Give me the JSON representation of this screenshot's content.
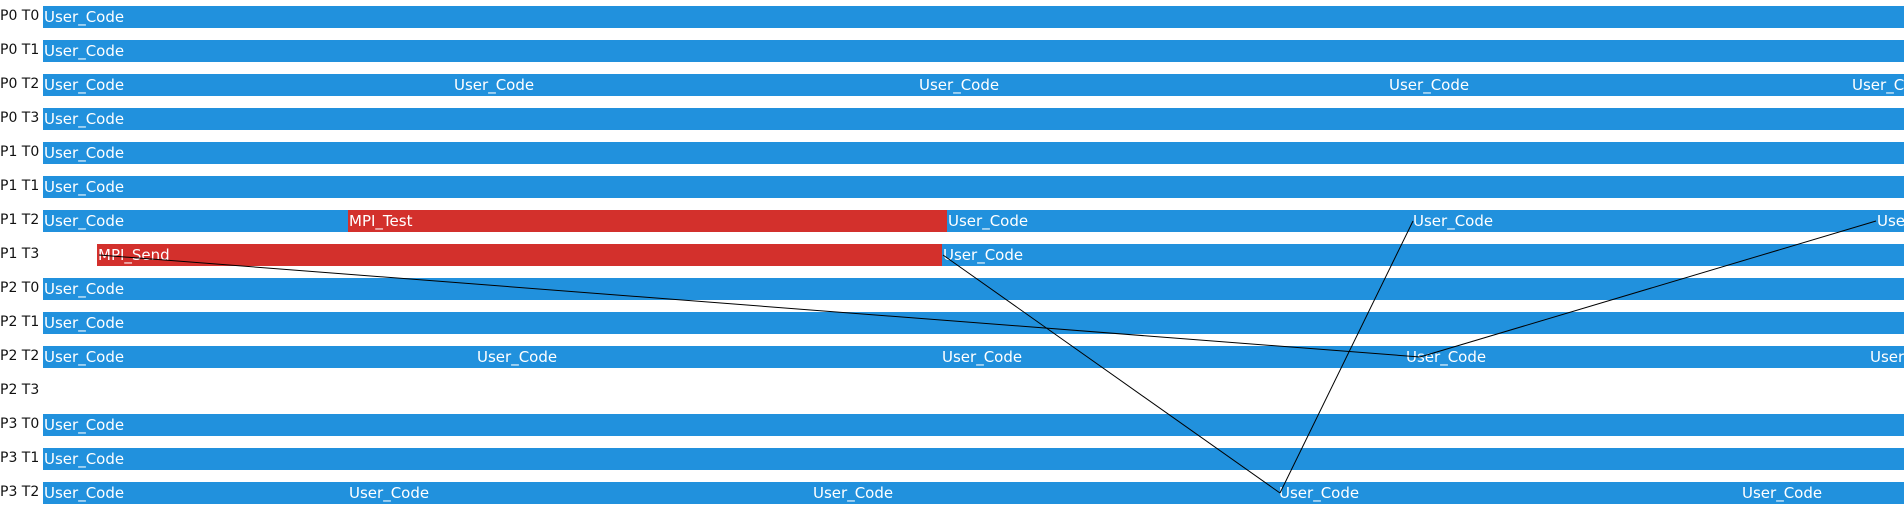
{
  "rows": [
    {
      "label": "P0 T0",
      "segments": [
        {
          "kind": "user",
          "label": "User_Code"
        }
      ]
    },
    {
      "label": "P0 T1",
      "segments": [
        {
          "kind": "user",
          "label": "User_Code"
        }
      ]
    },
    {
      "label": "P0 T2",
      "segments": [
        {
          "kind": "user",
          "label": "User_Code"
        },
        {
          "kind": "user",
          "label": "User_Code"
        },
        {
          "kind": "user",
          "label": "User_Code"
        },
        {
          "kind": "user",
          "label": "User_Code"
        },
        {
          "kind": "user",
          "label": "User_Code"
        }
      ]
    },
    {
      "label": "P0 T3",
      "segments": [
        {
          "kind": "user",
          "label": "User_Code"
        }
      ]
    },
    {
      "label": "P1 T0",
      "segments": [
        {
          "kind": "user",
          "label": "User_Code"
        }
      ]
    },
    {
      "label": "P1 T1",
      "segments": [
        {
          "kind": "user",
          "label": "User_Code"
        }
      ]
    },
    {
      "label": "P1 T2",
      "segments": [
        {
          "kind": "user",
          "label": "User_Code"
        },
        {
          "kind": "mpi",
          "label": "MPI_Test"
        },
        {
          "kind": "user",
          "label": "User_Code"
        },
        {
          "kind": "user",
          "label": "User_Code"
        },
        {
          "kind": "user",
          "label": "User_Code"
        }
      ]
    },
    {
      "label": "P1 T3",
      "segments": [
        {
          "kind": "mpi",
          "label": "MPI_Send"
        },
        {
          "kind": "user",
          "label": "User_Code"
        }
      ]
    },
    {
      "label": "P2 T0",
      "segments": [
        {
          "kind": "user",
          "label": "User_Code"
        }
      ]
    },
    {
      "label": "P2 T1",
      "segments": [
        {
          "kind": "user",
          "label": "User_Code"
        }
      ]
    },
    {
      "label": "P2 T2",
      "segments": [
        {
          "kind": "user",
          "label": "User_Code"
        },
        {
          "kind": "user",
          "label": "User_Code"
        },
        {
          "kind": "user",
          "label": "User_Code"
        },
        {
          "kind": "user",
          "label": "User_Code"
        },
        {
          "kind": "user",
          "label": "User_Code"
        }
      ]
    },
    {
      "label": "P2 T3",
      "segments": []
    },
    {
      "label": "P3 T0",
      "segments": [
        {
          "kind": "user",
          "label": "User_Code"
        }
      ]
    },
    {
      "label": "P3 T1",
      "segments": [
        {
          "kind": "user",
          "label": "User_Code"
        }
      ]
    },
    {
      "label": "P3 T2",
      "segments": [
        {
          "kind": "user",
          "label": "User_Code"
        },
        {
          "kind": "user",
          "label": "User_Code"
        },
        {
          "kind": "user",
          "label": "User_Code"
        },
        {
          "kind": "user",
          "label": "User_Code"
        },
        {
          "kind": "user",
          "label": "User_Code"
        }
      ]
    }
  ],
  "colors": {
    "user_code": "#2191dd",
    "mpi": "#d3302c",
    "message_line": "#000000",
    "text": "#ffffff"
  }
}
